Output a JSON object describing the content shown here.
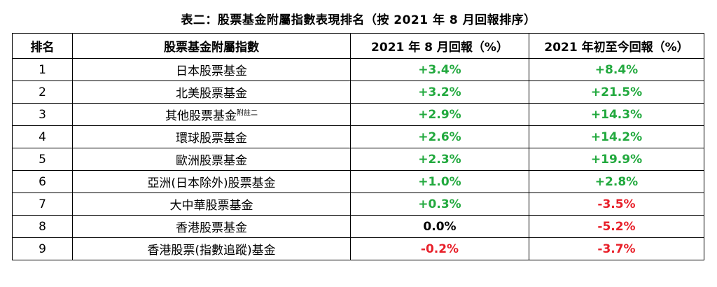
{
  "title": "表二：股票基金附屬指數表現排名（按 2021 年 8 月回報排序）",
  "headers": [
    "排名",
    "股票基金附屬指數",
    "2021 年 8 月回報（%）",
    "2021 年初至今回報（%）"
  ],
  "colors": {
    "positive": "#22a93e",
    "negative": "#e8202a",
    "neutral": "#000000"
  },
  "rows": [
    {
      "rank": "1",
      "name": "日本股票基金",
      "note": "",
      "aug": "+3.4%",
      "ytd": "+8.4%"
    },
    {
      "rank": "2",
      "name": "北美股票基金",
      "note": "",
      "aug": "+3.2%",
      "ytd": "+21.5%"
    },
    {
      "rank": "3",
      "name": "其他股票基金",
      "note": "附註二",
      "aug": "+2.9%",
      "ytd": "+14.3%"
    },
    {
      "rank": "4",
      "name": "環球股票基金",
      "note": "",
      "aug": "+2.6%",
      "ytd": "+14.2%"
    },
    {
      "rank": "5",
      "name": "歐洲股票基金",
      "note": "",
      "aug": "+2.3%",
      "ytd": "+19.9%"
    },
    {
      "rank": "6",
      "name": "亞洲(日本除外)股票基金",
      "note": "",
      "aug": "+1.0%",
      "ytd": "+2.8%"
    },
    {
      "rank": "7",
      "name": "大中華股票基金",
      "note": "",
      "aug": "+0.3%",
      "ytd": "-3.5%"
    },
    {
      "rank": "8",
      "name": "香港股票基金",
      "note": "",
      "aug": "0.0%",
      "ytd": "-5.2%"
    },
    {
      "rank": "9",
      "name": "香港股票(指數追蹤)基金",
      "note": "",
      "aug": "-0.2%",
      "ytd": "-3.7%"
    }
  ]
}
